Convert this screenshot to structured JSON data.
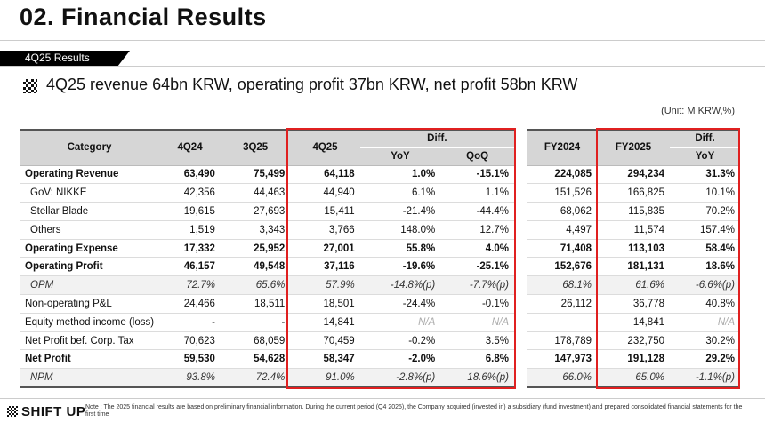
{
  "page": {
    "title": "02. Financial Results",
    "section_tab": "4Q25 Results",
    "headline": "4Q25 revenue 64bn KRW, operating profit 37bn KRW, net profit 58bn KRW",
    "unit_note": "(Unit: M KRW,%)",
    "footnote": "Note : The 2025 financial results are based on preliminary financial information. During the current period (Q4 2025), the Company acquired (invested in) a subsidiary (fund investment) and prepared consolidated financial statements for the first time",
    "logo": "SHIFT UP",
    "highlight_color": "#e02020"
  },
  "main_table": {
    "headers": {
      "category": "Category",
      "c1": "4Q24",
      "c2": "3Q25",
      "c3": "4Q25",
      "diff": "Diff.",
      "yoy": "YoY",
      "qoq": "QoQ"
    },
    "rows": [
      {
        "label": "Operating Revenue",
        "v1": "63,490",
        "v2": "75,499",
        "v3": "64,118",
        "yoy": "1.0%",
        "qoq": "-15.1%"
      },
      {
        "label": "GoV: NIKKE",
        "v1": "42,356",
        "v2": "44,463",
        "v3": "44,940",
        "yoy": "6.1%",
        "qoq": "1.1%"
      },
      {
        "label": "Stellar Blade",
        "v1": "19,615",
        "v2": "27,693",
        "v3": "15,411",
        "yoy": "-21.4%",
        "qoq": "-44.4%"
      },
      {
        "label": "Others",
        "v1": "1,519",
        "v2": "3,343",
        "v3": "3,766",
        "yoy": "148.0%",
        "qoq": "12.7%"
      },
      {
        "label": "Operating Expense",
        "v1": "17,332",
        "v2": "25,952",
        "v3": "27,001",
        "yoy": "55.8%",
        "qoq": "4.0%"
      },
      {
        "label": "Operating Profit",
        "v1": "46,157",
        "v2": "49,548",
        "v3": "37,116",
        "yoy": "-19.6%",
        "qoq": "-25.1%"
      },
      {
        "label": "OPM",
        "v1": "72.7%",
        "v2": "65.6%",
        "v3": "57.9%",
        "yoy": "-14.8%(p)",
        "qoq": "-7.7%(p)"
      },
      {
        "label": "Non-operating P&L",
        "v1": "24,466",
        "v2": "18,511",
        "v3": "18,501",
        "yoy": "-24.4%",
        "qoq": "-0.1%"
      },
      {
        "label": "Equity method income (loss)",
        "v1": "-",
        "v2": "-",
        "v3": "14,841",
        "yoy": "N/A",
        "qoq": "N/A"
      },
      {
        "label": "Net Profit bef. Corp. Tax",
        "v1": "70,623",
        "v2": "68,059",
        "v3": "70,459",
        "yoy": "-0.2%",
        "qoq": "3.5%"
      },
      {
        "label": "Net Profit",
        "v1": "59,530",
        "v2": "54,628",
        "v3": "58,347",
        "yoy": "-2.0%",
        "qoq": "6.8%"
      },
      {
        "label": "NPM",
        "v1": "93.8%",
        "v2": "72.4%",
        "v3": "91.0%",
        "yoy": "-2.8%(p)",
        "qoq": "18.6%(p)"
      }
    ]
  },
  "fy_table": {
    "headers": {
      "c1": "FY2024",
      "c2": "FY2025",
      "diff": "Diff.",
      "yoy": "YoY"
    },
    "rows": [
      {
        "v1": "224,085",
        "v2": "294,234",
        "yoy": "31.3%"
      },
      {
        "v1": "151,526",
        "v2": "166,825",
        "yoy": "10.1%"
      },
      {
        "v1": "68,062",
        "v2": "115,835",
        "yoy": "70.2%"
      },
      {
        "v1": "4,497",
        "v2": "11,574",
        "yoy": "157.4%"
      },
      {
        "v1": "71,408",
        "v2": "113,103",
        "yoy": "58.4%"
      },
      {
        "v1": "152,676",
        "v2": "181,131",
        "yoy": "18.6%"
      },
      {
        "v1": "68.1%",
        "v2": "61.6%",
        "yoy": "-6.6%(p)"
      },
      {
        "v1": "26,112",
        "v2": "36,778",
        "yoy": "40.8%"
      },
      {
        "v1": "",
        "v2": "14,841",
        "yoy": "N/A"
      },
      {
        "v1": "178,789",
        "v2": "232,750",
        "yoy": "30.2%"
      },
      {
        "v1": "147,973",
        "v2": "191,128",
        "yoy": "29.2%"
      },
      {
        "v1": "66.0%",
        "v2": "65.0%",
        "yoy": "-1.1%(p)"
      }
    ]
  }
}
